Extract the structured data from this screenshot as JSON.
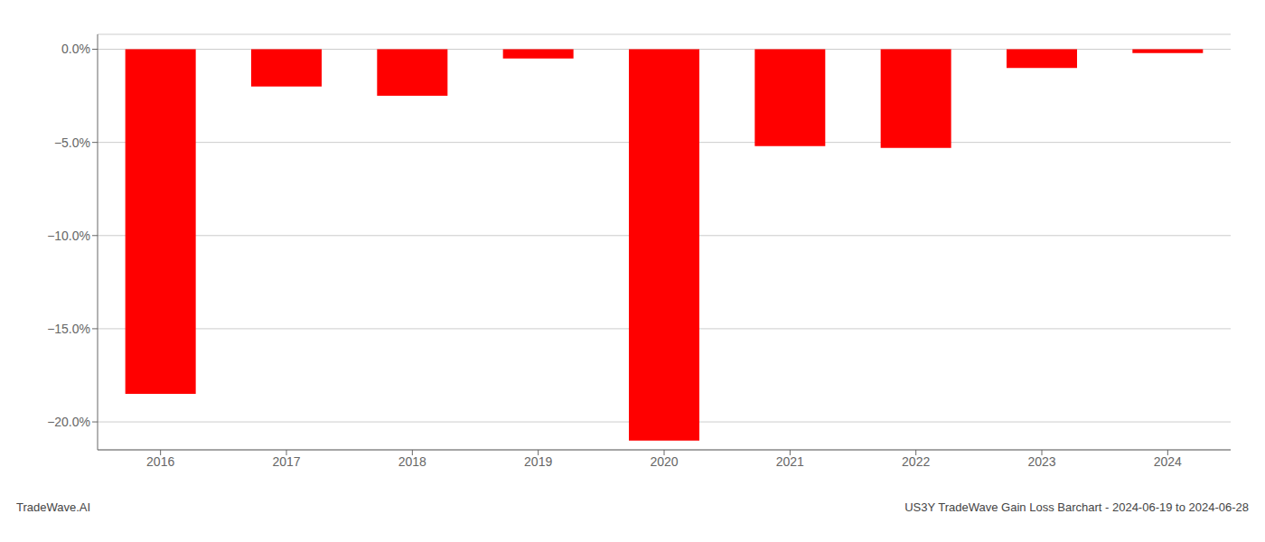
{
  "chart_data": {
    "type": "bar",
    "categories": [
      "2016",
      "2017",
      "2018",
      "2019",
      "2020",
      "2021",
      "2022",
      "2023",
      "2024"
    ],
    "values": [
      -18.5,
      -2.0,
      -2.5,
      -0.5,
      -21.0,
      -5.2,
      -5.3,
      -1.0,
      -0.2
    ],
    "color": "#ff0000",
    "ylim": [
      -21.5,
      0.8
    ],
    "yticks": [
      {
        "value": 0,
        "label": "0.0%"
      },
      {
        "value": -5,
        "label": "−5.0%"
      },
      {
        "value": -10,
        "label": "−10.0%"
      },
      {
        "value": -15,
        "label": "−15.0%"
      },
      {
        "value": -20,
        "label": "−20.0%"
      }
    ],
    "grid": true,
    "annotations": [
      "TradeWave.AI",
      "US3Y TradeWave Gain Loss Barchart - 2024-06-19 to 2024-06-28"
    ]
  }
}
